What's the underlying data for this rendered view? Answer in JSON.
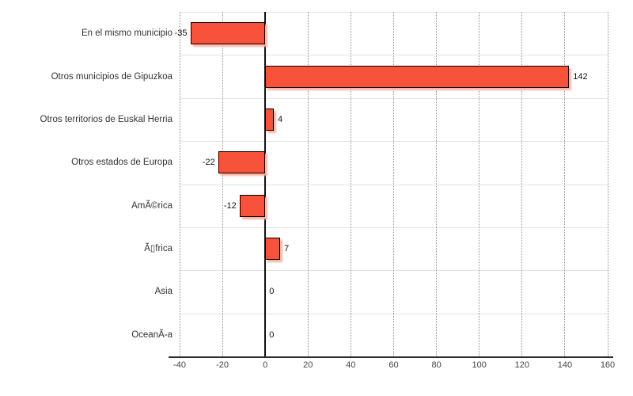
{
  "chart_data": {
    "type": "bar",
    "orientation": "horizontal",
    "title": "",
    "legend": "none",
    "grid": "vertical-dotted",
    "categories": [
      "En el mismo municipio",
      "Otros municipios de Gipuzkoa",
      "Otros territorios de Euskal Herria",
      "Otros estados de Europa",
      "AmÃ©rica",
      "Ã▯frica",
      "Asia",
      "OceanÃ-a"
    ],
    "values": [
      -35,
      142,
      4,
      -22,
      -12,
      7,
      0,
      0
    ],
    "value_labels": [
      "-35",
      "142",
      "4",
      "-22",
      "-12",
      "7",
      "0",
      "0"
    ],
    "xlim": [
      -40,
      160
    ],
    "xticks": [
      -40,
      -20,
      0,
      20,
      40,
      60,
      80,
      100,
      120,
      140,
      160
    ],
    "colors": {
      "bar_fill": "#f9523b",
      "bar_border": "#000000",
      "bar_shadow": "#fbb3a2",
      "grid_dotted": "#8f8f8f",
      "band_separator": "#e3e3e3",
      "zero_line": "#111111",
      "axis_line": "#2a2a2a",
      "tick_text": "#444444",
      "category_text": "#333333",
      "value_text": "#111111",
      "background": "#ffffff"
    }
  }
}
